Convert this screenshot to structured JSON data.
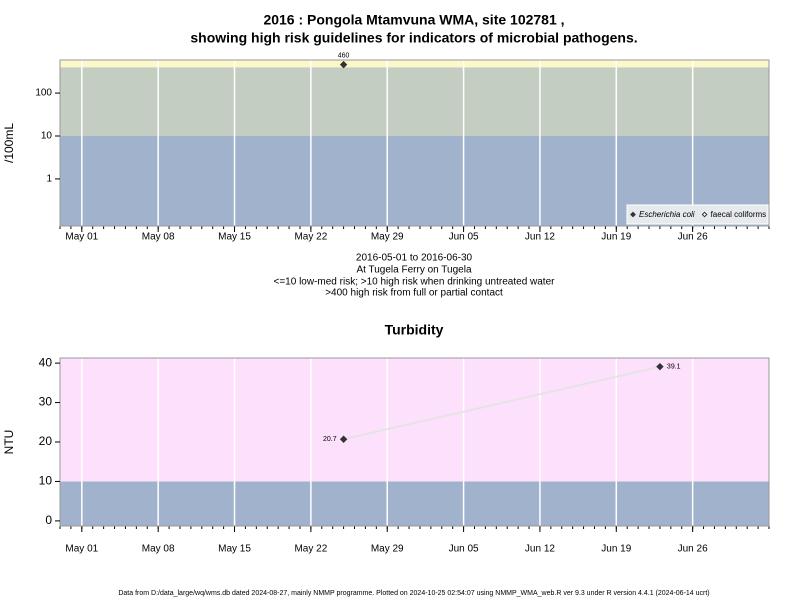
{
  "chart_data": [
    {
      "type": "scatter",
      "title": [
        "2016 : Pongola Mtamvuna WMA, site 102781 ,",
        "showing high risk guidelines for indicators of microbial pathogens."
      ],
      "ylabel": "/100mL",
      "caption": [
        "2016-05-01 to 2016-06-30",
        "At Tugela Ferry on Tugela",
        "<=10 low-med risk; >10 high risk when drinking untreated water",
        ">400 high risk from full or partial contact"
      ],
      "log_y": true,
      "xlim": [
        "2016-04-29",
        "2016-07-03"
      ],
      "ylim": [
        0.08,
        590
      ],
      "yticks": [
        1,
        10,
        100
      ],
      "xticks": [
        {
          "value": "2016-05-01",
          "label": "May 01"
        },
        {
          "value": "2016-05-08",
          "label": "May 08"
        },
        {
          "value": "2016-05-15",
          "label": "May 15"
        },
        {
          "value": "2016-05-22",
          "label": "May 22"
        },
        {
          "value": "2016-05-29",
          "label": "May 29"
        },
        {
          "value": "2016-06-05",
          "label": "Jun 05"
        },
        {
          "value": "2016-06-12",
          "label": "Jun 12"
        },
        {
          "value": "2016-06-19",
          "label": "Jun 19"
        },
        {
          "value": "2016-06-26",
          "label": "Jun 26"
        }
      ],
      "grid": "x",
      "bands": {
        "thresholds": [
          10,
          400
        ],
        "colors": [
          "#a1b3cc",
          "#c4cdc1",
          "#fdf8c9"
        ]
      },
      "legend": "bottom-right",
      "series": [
        {
          "name": "Escherichia coli",
          "marker": "filled",
          "color": "#333333",
          "x": [
            "2016-05-25"
          ],
          "values": [
            460
          ]
        },
        {
          "name": "faecal coliforms",
          "marker": "open",
          "color": "#333333",
          "x": [],
          "values": []
        }
      ]
    },
    {
      "type": "line",
      "title": "Turbidity",
      "ylabel": "NTU",
      "log_y": false,
      "xlim": [
        "2016-04-29",
        "2016-07-03"
      ],
      "ylim": [
        -1.3,
        41.3
      ],
      "yticks": [
        0,
        10,
        20,
        30,
        40
      ],
      "xticks": [
        {
          "value": "2016-05-01",
          "label": "May 01"
        },
        {
          "value": "2016-05-08",
          "label": "May 08"
        },
        {
          "value": "2016-05-15",
          "label": "May 15"
        },
        {
          "value": "2016-05-22",
          "label": "May 22"
        },
        {
          "value": "2016-05-29",
          "label": "May 29"
        },
        {
          "value": "2016-06-05",
          "label": "Jun 05"
        },
        {
          "value": "2016-06-12",
          "label": "Jun 12"
        },
        {
          "value": "2016-06-19",
          "label": "Jun 19"
        },
        {
          "value": "2016-06-26",
          "label": "Jun 26"
        }
      ],
      "grid": "x",
      "bands": {
        "thresholds": [
          10
        ],
        "colors": [
          "#a1b3cc",
          "#fde0fb"
        ]
      },
      "series": [
        {
          "color": "#333333",
          "line_color": "#e4e4e4",
          "x": [
            "2016-05-25",
            "2016-06-23"
          ],
          "values": [
            20.7,
            39.1
          ]
        }
      ]
    }
  ],
  "footer": "Data from D:/data_large/wq/wms.db dated 2024-08-27, mainly NMMP programme. Plotted on 2024-10-25 02:54:07 using NMMP_WMA_web.R ver 9.3 under R version 4.4.1 (2024-06-14 ucrt)"
}
